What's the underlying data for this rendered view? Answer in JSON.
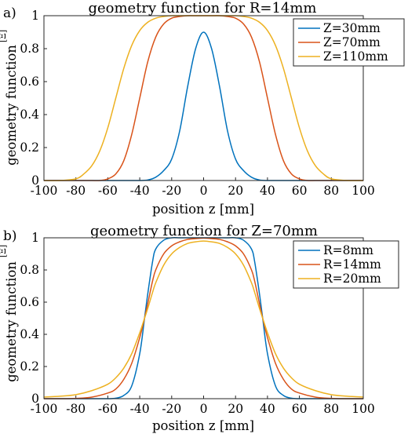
{
  "chart_data": [
    {
      "type": "line",
      "panel_label": "a)",
      "title": "geometry function for R=14mm",
      "xlabel": "position z [mm]",
      "ylabel": "geometry function",
      "ylabel_unit": "[Ξ]",
      "xlim": [
        -100,
        100
      ],
      "ylim": [
        0,
        1
      ],
      "xticks": [
        "-100",
        "-80",
        "-60",
        "-40",
        "-20",
        "0",
        "20",
        "40",
        "60",
        "80",
        "100"
      ],
      "yticks": [
        "0",
        "0.2",
        "0.4",
        "0.6",
        "0.8",
        "1"
      ],
      "grid": false,
      "legend_position": "top-right",
      "x": [
        -100,
        -90,
        -80,
        -75,
        -70,
        -65,
        -60,
        -55,
        -50,
        -45,
        -40,
        -35,
        -30,
        -25,
        -20,
        -15,
        -10,
        -5,
        0,
        5,
        10,
        15,
        20,
        25,
        30,
        35,
        40,
        45,
        50,
        55,
        60,
        65,
        70,
        75,
        80,
        90,
        100
      ],
      "series": [
        {
          "name": "Z=30mm",
          "color": "#0072BD",
          "values": [
            0,
            0,
            0,
            0,
            0,
            0,
            0,
            0,
            0,
            0,
            0,
            0.003,
            0.02,
            0.06,
            0.13,
            0.3,
            0.57,
            0.8,
            0.9,
            0.8,
            0.57,
            0.3,
            0.13,
            0.06,
            0.02,
            0.003,
            0,
            0,
            0,
            0,
            0,
            0,
            0,
            0,
            0,
            0,
            0
          ]
        },
        {
          "name": "Z=70mm",
          "color": "#D95319",
          "values": [
            0,
            0,
            0,
            0,
            0,
            0,
            0.01,
            0.04,
            0.12,
            0.28,
            0.5,
            0.72,
            0.87,
            0.95,
            0.985,
            0.995,
            1,
            1,
            1,
            1,
            1,
            0.995,
            0.985,
            0.95,
            0.87,
            0.72,
            0.5,
            0.28,
            0.12,
            0.04,
            0.01,
            0,
            0,
            0,
            0,
            0,
            0
          ]
        },
        {
          "name": "Z=110mm",
          "color": "#EDB120",
          "values": [
            0,
            0,
            0.01,
            0.04,
            0.09,
            0.18,
            0.32,
            0.5,
            0.68,
            0.82,
            0.91,
            0.96,
            0.985,
            0.995,
            1,
            1,
            1,
            1,
            1,
            1,
            1,
            1,
            1,
            0.995,
            0.985,
            0.96,
            0.91,
            0.82,
            0.68,
            0.5,
            0.32,
            0.18,
            0.09,
            0.04,
            0.01,
            0,
            0
          ]
        }
      ]
    },
    {
      "type": "line",
      "panel_label": "b)",
      "title": "geometry function for Z=70mm",
      "xlabel": "position z [mm]",
      "ylabel": "geometry function",
      "ylabel_unit": "[Ξ]",
      "xlim": [
        -100,
        100
      ],
      "ylim": [
        0,
        1
      ],
      "xticks": [
        "-100",
        "-80",
        "-60",
        "-40",
        "-20",
        "0",
        "20",
        "40",
        "60",
        "80",
        "100"
      ],
      "yticks": [
        "0",
        "0.2",
        "0.4",
        "0.6",
        "0.8",
        "1"
      ],
      "grid": false,
      "legend_position": "top-right",
      "x": [
        -100,
        -90,
        -80,
        -70,
        -60,
        -55,
        -50,
        -45,
        -40,
        -37,
        -35,
        -32,
        -30,
        -25,
        -20,
        -15,
        -10,
        -5,
        0,
        5,
        10,
        15,
        20,
        25,
        30,
        32,
        35,
        37,
        40,
        45,
        50,
        55,
        60,
        70,
        80,
        90,
        100
      ],
      "series": [
        {
          "name": "R=8mm",
          "color": "#0072BD",
          "values": [
            0,
            0,
            0,
            0,
            0,
            0.003,
            0.02,
            0.08,
            0.28,
            0.5,
            0.65,
            0.85,
            0.93,
            0.985,
            1,
            1,
            1,
            1,
            1,
            1,
            1,
            1,
            1,
            0.985,
            0.93,
            0.85,
            0.65,
            0.5,
            0.28,
            0.08,
            0.02,
            0.003,
            0,
            0,
            0,
            0,
            0
          ]
        },
        {
          "name": "R=14mm",
          "color": "#D95319",
          "values": [
            0,
            0,
            0.002,
            0.01,
            0.035,
            0.06,
            0.12,
            0.22,
            0.38,
            0.5,
            0.59,
            0.73,
            0.8,
            0.9,
            0.95,
            0.975,
            0.99,
            0.995,
            0.998,
            0.995,
            0.99,
            0.975,
            0.95,
            0.9,
            0.8,
            0.73,
            0.59,
            0.5,
            0.38,
            0.22,
            0.12,
            0.06,
            0.035,
            0.01,
            0.002,
            0,
            0
          ]
        },
        {
          "name": "R=20mm",
          "color": "#EDB120",
          "values": [
            0.01,
            0.015,
            0.025,
            0.05,
            0.09,
            0.13,
            0.19,
            0.28,
            0.41,
            0.5,
            0.56,
            0.66,
            0.72,
            0.83,
            0.9,
            0.94,
            0.965,
            0.975,
            0.98,
            0.975,
            0.965,
            0.94,
            0.9,
            0.83,
            0.72,
            0.66,
            0.56,
            0.5,
            0.41,
            0.28,
            0.19,
            0.13,
            0.09,
            0.05,
            0.025,
            0.015,
            0.01
          ]
        }
      ]
    }
  ]
}
